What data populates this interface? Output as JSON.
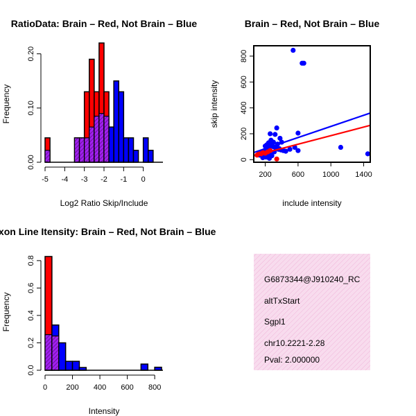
{
  "colors": {
    "brain": "#ff0000",
    "not_brain": "#0000ff",
    "overlap": "#a020f0",
    "overlap_hatch": "#5a0a7a",
    "info_bg": "#f8dcee",
    "info_hatch": "#f0b4d8",
    "pval": "#cc0000"
  },
  "chart_data": [
    {
      "id": "ratio-histogram",
      "type": "histogram",
      "title": "RatioData: Brain – Red, Not Brain – Blue",
      "xlabel": "Log2 Ratio Skip/Include",
      "ylabel": "Frequency",
      "xlim": [
        -5,
        1
      ],
      "ylim": [
        0,
        0.22
      ],
      "x_ticks": [
        -5,
        -4,
        -3,
        -2,
        -1,
        0
      ],
      "x_tick_labels": [
        "-5",
        "-4",
        "-3",
        "-2",
        "-1",
        "0"
      ],
      "y_ticks": [
        0.0,
        0.1,
        0.2
      ],
      "y_tick_labels": [
        "0.00",
        "0.10",
        "0.20"
      ],
      "bin_edges": [
        -5.0,
        -4.75,
        -4.5,
        -4.25,
        -4.0,
        -3.75,
        -3.5,
        -3.25,
        -3.0,
        -2.75,
        -2.5,
        -2.25,
        -2.0,
        -1.75,
        -1.5,
        -1.25,
        -1.0,
        -0.75,
        -0.5,
        -0.25,
        0.0,
        0.25,
        0.5
      ],
      "series": [
        {
          "name": "Brain",
          "color": "red",
          "values": [
            0.045,
            0,
            0,
            0,
            0,
            0,
            0.045,
            0.045,
            0.13,
            0.19,
            0.13,
            0.22,
            0.13,
            0,
            0,
            0,
            0,
            0,
            0,
            0,
            0,
            0
          ]
        },
        {
          "name": "Not Brain",
          "color": "blue",
          "values": [
            0.022,
            0,
            0,
            0,
            0,
            0,
            0.045,
            0.045,
            0.045,
            0.065,
            0.085,
            0.09,
            0.085,
            0.065,
            0.15,
            0.13,
            0.045,
            0.045,
            0.022,
            0,
            0.045,
            0.022
          ]
        }
      ]
    },
    {
      "id": "intensity-scatter",
      "type": "scatter",
      "title": "Brain – Red, Not Brain – Blue",
      "xlabel": "include intensity",
      "ylabel": "skip intensity",
      "xlim": [
        60,
        1480
      ],
      "ylim": [
        -20,
        880
      ],
      "x_ticks": [
        200,
        600,
        1000,
        1400
      ],
      "x_tick_labels": [
        "200",
        "600",
        "1000",
        "1400"
      ],
      "y_ticks": [
        0,
        200,
        400,
        600,
        800
      ],
      "y_tick_labels": [
        "0",
        "200",
        "400",
        "600",
        "800"
      ],
      "series": [
        {
          "name": "Not Brain",
          "color": "blue",
          "x": [
            540,
            650,
            670,
            600,
            340,
            260,
            320,
            380,
            400,
            350,
            300,
            280,
            250,
            230,
            200,
            180,
            160,
            150,
            140,
            130,
            200,
            220,
            240,
            270,
            300,
            330,
            360,
            390,
            420,
            450,
            500,
            560,
            600,
            1120,
            1450,
            210,
            230,
            170,
            190,
            260,
            310,
            370,
            250,
            280
          ],
          "y": [
            845,
            745,
            745,
            205,
            245,
            200,
            195,
            165,
            135,
            120,
            135,
            115,
            95,
            85,
            75,
            65,
            55,
            50,
            45,
            35,
            105,
            115,
            130,
            150,
            100,
            90,
            80,
            75,
            70,
            65,
            80,
            95,
            70,
            95,
            45,
            20,
            30,
            15,
            25,
            40,
            60,
            85,
            10,
            30
          ]
        },
        {
          "name": "Brain",
          "color": "red",
          "x": [
            100,
            120,
            150,
            170,
            200,
            230,
            260,
            340
          ],
          "y": [
            35,
            45,
            45,
            55,
            50,
            60,
            70,
            5
          ]
        }
      ],
      "fit_lines": [
        {
          "name": "Not Brain",
          "color": "blue",
          "x": [
            60,
            1480
          ],
          "y": [
            55,
            360
          ]
        },
        {
          "name": "Brain",
          "color": "red",
          "x": [
            60,
            1480
          ],
          "y": [
            30,
            265
          ]
        }
      ]
    },
    {
      "id": "intensity-histogram",
      "type": "histogram",
      "title": "Exon Line Itensity: Brain – Red, Not Brain – Blue",
      "xlabel": "Intensity",
      "ylabel": "Frequency",
      "xlim": [
        0,
        860
      ],
      "ylim": [
        0,
        0.85
      ],
      "x_ticks": [
        0,
        200,
        400,
        600,
        800
      ],
      "x_tick_labels": [
        "0",
        "200",
        "400",
        "600",
        "800"
      ],
      "y_ticks": [
        0.0,
        0.2,
        0.4,
        0.6,
        0.8
      ],
      "y_tick_labels": [
        "0.0",
        "0.2",
        "0.4",
        "0.6",
        "0.8"
      ],
      "bin_edges": [
        0,
        50,
        100,
        150,
        200,
        250,
        300,
        350,
        400,
        450,
        500,
        550,
        600,
        650,
        700,
        750,
        800,
        850
      ],
      "series": [
        {
          "name": "Brain",
          "color": "red",
          "values": [
            0.83,
            0.25,
            0,
            0,
            0,
            0,
            0,
            0,
            0,
            0,
            0,
            0,
            0,
            0,
            0,
            0,
            0
          ]
        },
        {
          "name": "Not Brain",
          "color": "blue",
          "values": [
            0.26,
            0.33,
            0.2,
            0.065,
            0.065,
            0.02,
            0,
            0,
            0,
            0,
            0,
            0,
            0,
            0,
            0.045,
            0,
            0.022
          ]
        }
      ]
    }
  ],
  "info_panel": {
    "probe_id": "G6873344@J910240_RC",
    "event_type": "altTxStart",
    "gene": "Sgpl1",
    "location": "chr10.2221-2.28",
    "pval": "Pval: 2.000000"
  }
}
